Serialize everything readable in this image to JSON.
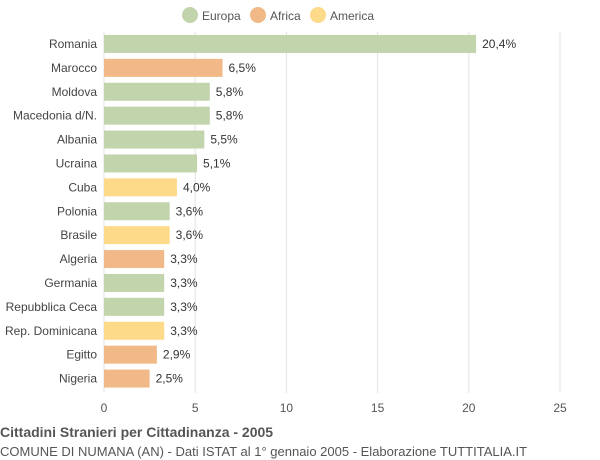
{
  "chart_data": {
    "type": "bar",
    "orientation": "horizontal",
    "title": "Cittadini Stranieri per Cittadinanza - 2005",
    "subtitle": "COMUNE DI NUMANA (AN) - Dati ISTAT al 1° gennaio 2005 - Elaborazione TUTTITALIA.IT",
    "xlim": [
      0,
      25
    ],
    "xticks": [
      0,
      5,
      10,
      15,
      20,
      25
    ],
    "grid": true,
    "legend_position": "top-center",
    "legend": [
      {
        "name": "Europa",
        "color": "#c2d4ac"
      },
      {
        "name": "Africa",
        "color": "#f0b987"
      },
      {
        "name": "America",
        "color": "#fdd98a"
      }
    ],
    "categories": [
      "Romania",
      "Marocco",
      "Moldova",
      "Macedonia d/N.",
      "Albania",
      "Ucraina",
      "Cuba",
      "Polonia",
      "Brasile",
      "Algeria",
      "Germania",
      "Repubblica Ceca",
      "Rep. Dominicana",
      "Egitto",
      "Nigeria"
    ],
    "values": [
      20.4,
      6.5,
      5.8,
      5.8,
      5.5,
      5.1,
      4.0,
      3.6,
      3.6,
      3.3,
      3.3,
      3.3,
      3.3,
      2.9,
      2.5
    ],
    "value_labels": [
      "20,4%",
      "6,5%",
      "5,8%",
      "5,8%",
      "5,5%",
      "5,1%",
      "4,0%",
      "3,6%",
      "3,6%",
      "3,3%",
      "3,3%",
      "3,3%",
      "3,3%",
      "2,9%",
      "2,5%"
    ],
    "groups": [
      "Europa",
      "Africa",
      "Europa",
      "Europa",
      "Europa",
      "Europa",
      "America",
      "Europa",
      "America",
      "Africa",
      "Europa",
      "Europa",
      "America",
      "Africa",
      "Africa"
    ]
  }
}
